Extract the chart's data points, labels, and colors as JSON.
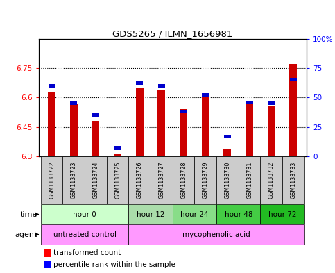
{
  "title": "GDS5265 / ILMN_1656981",
  "samples": [
    "GSM1133722",
    "GSM1133723",
    "GSM1133724",
    "GSM1133725",
    "GSM1133726",
    "GSM1133727",
    "GSM1133728",
    "GSM1133729",
    "GSM1133730",
    "GSM1133731",
    "GSM1133732",
    "GSM1133733"
  ],
  "red_values": [
    6.63,
    6.57,
    6.48,
    6.31,
    6.65,
    6.64,
    6.54,
    6.62,
    6.34,
    6.57,
    6.56,
    6.77
  ],
  "blue_values": [
    60,
    45,
    35,
    7,
    62,
    60,
    38,
    52,
    17,
    46,
    45,
    65
  ],
  "y_min": 6.3,
  "y_max": 6.9,
  "y_ticks": [
    6.3,
    6.45,
    6.6,
    6.75
  ],
  "y2_ticks": [
    0,
    25,
    50,
    75,
    100
  ],
  "red_color": "#cc0000",
  "blue_color": "#0000cc",
  "plot_bg": "#ffffff",
  "sample_cell_color": "#cccccc",
  "time_groups": [
    {
      "label": "hour 0",
      "start": 0,
      "end": 4,
      "color": "#ccffcc"
    },
    {
      "label": "hour 12",
      "start": 4,
      "end": 6,
      "color": "#aaddaa"
    },
    {
      "label": "hour 24",
      "start": 6,
      "end": 8,
      "color": "#88dd88"
    },
    {
      "label": "hour 48",
      "start": 8,
      "end": 10,
      "color": "#44cc44"
    },
    {
      "label": "hour 72",
      "start": 10,
      "end": 12,
      "color": "#22bb22"
    }
  ],
  "agent_groups": [
    {
      "label": "untreated control",
      "start": 0,
      "end": 4,
      "color": "#ff99ff"
    },
    {
      "label": "mycophenolic acid",
      "start": 4,
      "end": 12,
      "color": "#ff99ff"
    }
  ],
  "legend_red": "transformed count",
  "legend_blue": "percentile rank within the sample",
  "bar_width": 0.35,
  "base_value": 6.3
}
